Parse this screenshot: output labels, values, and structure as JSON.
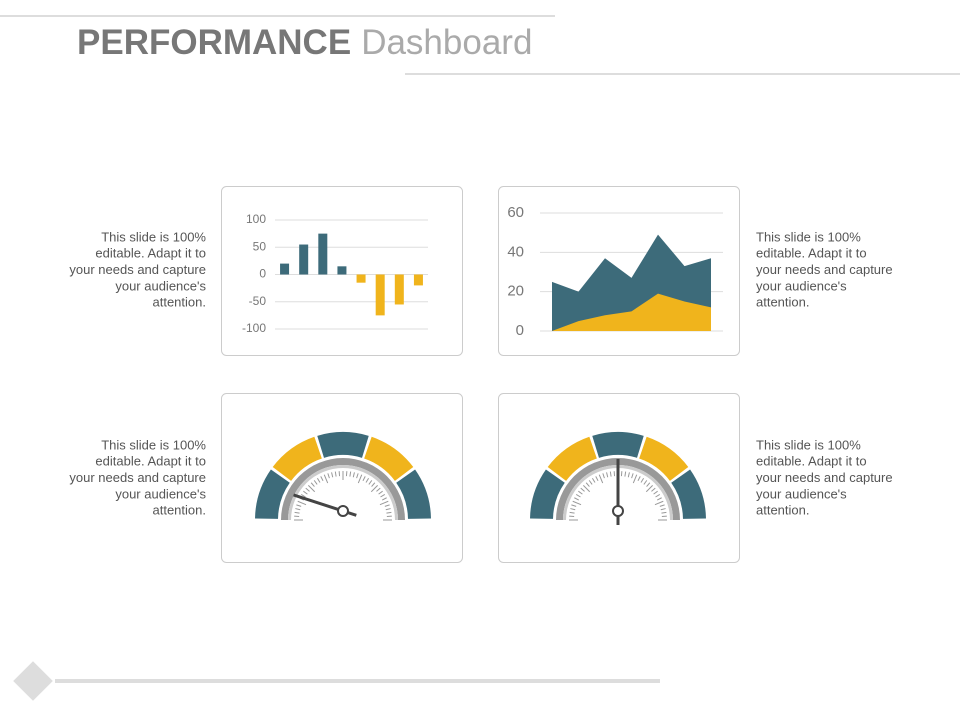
{
  "title_bold": "PERFORMANCE",
  "title_light": "Dashboard",
  "notes": [
    {
      "lines": [
        "This slide is 100%",
        "editable. Adapt it to",
        "your needs and capture",
        "your audience's",
        "attention."
      ]
    },
    {
      "lines": [
        "This slide is 100%",
        "editable. Adapt it to",
        "your needs and capture",
        "your audience's",
        "attention."
      ]
    },
    {
      "lines": [
        "This slide is 100%",
        "editable. Adapt it to",
        "your needs and capture",
        "your audience's",
        "attention."
      ]
    },
    {
      "lines": [
        "This slide is 100%",
        "editable. Adapt it to",
        "your needs and capture",
        "your audience's",
        "attention."
      ]
    }
  ],
  "chart_data": [
    {
      "type": "bar",
      "categories": [
        null,
        null,
        null,
        null,
        null,
        null,
        null,
        null
      ],
      "values": [
        20,
        55,
        75,
        15,
        -15,
        -75,
        -55,
        -20
      ],
      "colors": [
        "#3d6b7a",
        "#3d6b7a",
        "#3d6b7a",
        "#3d6b7a",
        "#f0b41c",
        "#f0b41c",
        "#f0b41c",
        "#f0b41c"
      ],
      "ylim": [
        -100,
        100
      ],
      "yticks": [
        100,
        50,
        0,
        -50,
        -100
      ],
      "grid": true
    },
    {
      "type": "area",
      "categories": [
        null,
        null,
        null,
        null,
        null,
        null,
        null
      ],
      "series": [
        {
          "color": "#3d6b7a",
          "values": [
            25,
            20,
            37,
            27,
            49,
            33,
            37
          ]
        },
        {
          "color": "#f0b41c",
          "values": [
            0,
            5,
            8,
            10,
            19,
            15,
            12
          ]
        }
      ],
      "ylim": [
        0,
        60
      ],
      "yticks": [
        0,
        20,
        40,
        60
      ],
      "grid": true
    }
  ]
}
